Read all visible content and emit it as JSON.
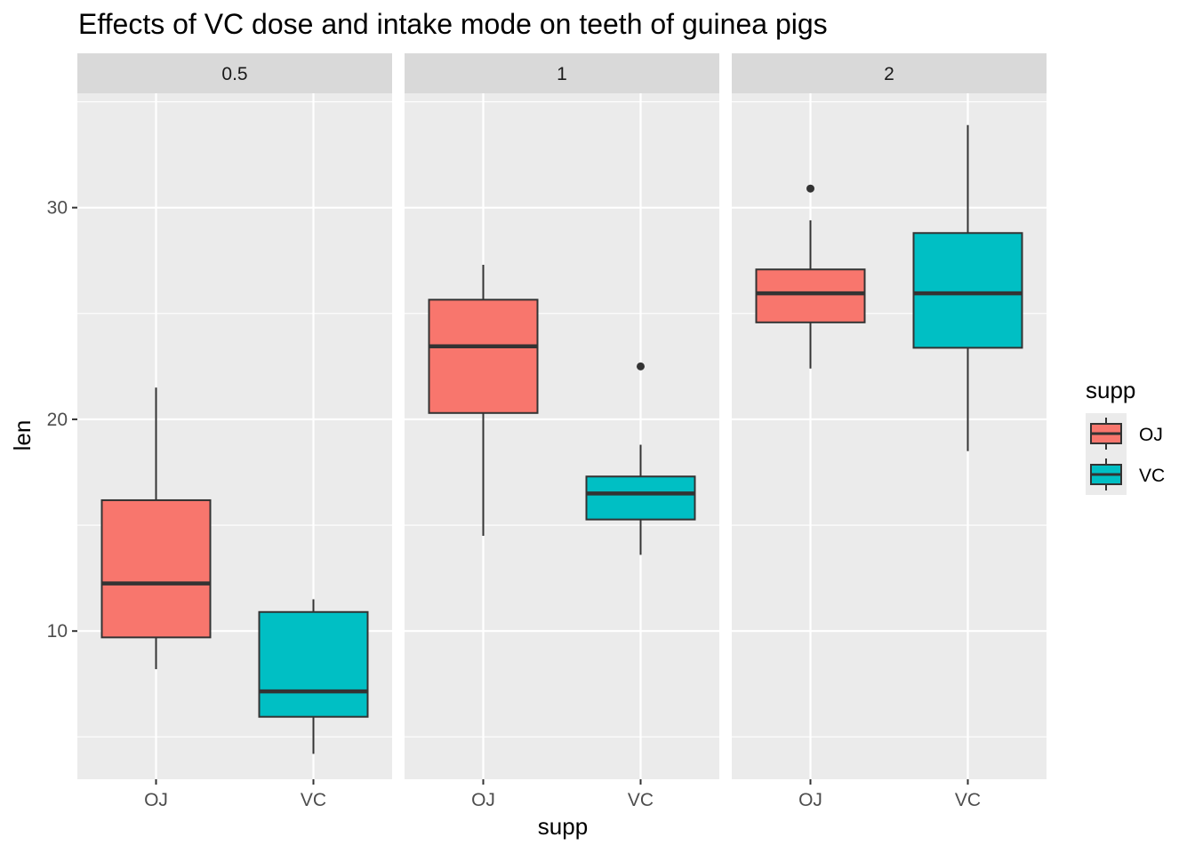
{
  "chart_data": {
    "type": "boxplot",
    "title": "Effects of VC dose and intake mode on teeth of guinea pigs",
    "xlabel": "supp",
    "ylabel": "len",
    "ylim": [
      3.0,
      35.4
    ],
    "yticks": [
      10,
      20,
      30
    ],
    "facets": [
      "0.5",
      "1",
      "2"
    ],
    "categories": [
      "OJ",
      "VC"
    ],
    "legend": {
      "title": "supp",
      "position": "right",
      "entries": [
        {
          "label": "OJ",
          "color": "#F8766D"
        },
        {
          "label": "VC",
          "color": "#00BFC4"
        }
      ]
    },
    "boxes": [
      {
        "facet": "0.5",
        "supp": "OJ",
        "whisker_low": 8.2,
        "q1": 9.7,
        "median": 12.25,
        "q3": 16.18,
        "whisker_high": 21.5,
        "outliers": []
      },
      {
        "facet": "0.5",
        "supp": "VC",
        "whisker_low": 4.2,
        "q1": 5.95,
        "median": 7.15,
        "q3": 10.9,
        "whisker_high": 11.5,
        "outliers": []
      },
      {
        "facet": "1",
        "supp": "OJ",
        "whisker_low": 14.5,
        "q1": 20.3,
        "median": 23.45,
        "q3": 25.65,
        "whisker_high": 27.3,
        "outliers": []
      },
      {
        "facet": "1",
        "supp": "VC",
        "whisker_low": 13.6,
        "q1": 15.27,
        "median": 16.5,
        "q3": 17.3,
        "whisker_high": 18.8,
        "outliers": [
          22.5
        ]
      },
      {
        "facet": "2",
        "supp": "OJ",
        "whisker_low": 22.4,
        "q1": 24.58,
        "median": 25.95,
        "q3": 27.08,
        "whisker_high": 29.4,
        "outliers": [
          30.9
        ]
      },
      {
        "facet": "2",
        "supp": "VC",
        "whisker_low": 18.5,
        "q1": 23.38,
        "median": 25.95,
        "q3": 28.8,
        "whisker_high": 33.9,
        "outliers": []
      }
    ],
    "grid": true,
    "colors": {
      "panel_bg": "#EBEBEB",
      "strip_bg": "#D9D9D9",
      "grid": "#FFFFFF",
      "box_line": "#333333",
      "axis_text": "#4D4D4D"
    }
  }
}
